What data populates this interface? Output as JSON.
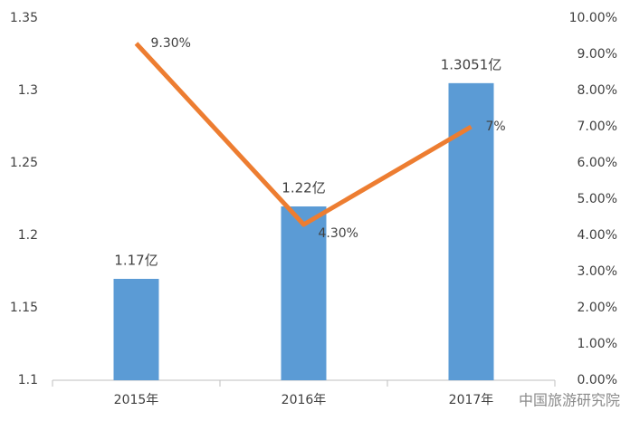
{
  "chart_data": {
    "type": "combo",
    "categories": [
      "2015年",
      "2016年",
      "2017年"
    ],
    "series": [
      {
        "type": "bar",
        "color": "#5b9bd5",
        "values": [
          1.17,
          1.22,
          1.3051
        ],
        "value_labels": [
          "1.17亿",
          "1.22亿",
          "1.3051亿"
        ]
      },
      {
        "type": "line",
        "axis": "y2",
        "color": "#ed7d31",
        "values": [
          9.3,
          4.3,
          7
        ],
        "value_labels": [
          "9.30%",
          "4.30%",
          "7%"
        ]
      }
    ],
    "ylim": [
      1.1,
      1.35
    ],
    "yticks": [
      1.1,
      1.15,
      1.2,
      1.25,
      1.3,
      1.35
    ],
    "y2lim": [
      0,
      10
    ],
    "y2ticks": [
      {
        "value": 0,
        "label": "0.00%"
      },
      {
        "value": 1,
        "label": "1.00%"
      },
      {
        "value": 2,
        "label": "2.00%"
      },
      {
        "value": 3,
        "label": "3.00%"
      },
      {
        "value": 4,
        "label": "4.00%"
      },
      {
        "value": 5,
        "label": "5.00%"
      },
      {
        "value": 6,
        "label": "6.00%"
      },
      {
        "value": 7,
        "label": "7.00%"
      },
      {
        "value": 8,
        "label": "8.00%"
      },
      {
        "value": 9,
        "label": "9.00%"
      },
      {
        "value": 10,
        "label": "10.00%"
      }
    ],
    "watermark": "中国旅游研究院"
  }
}
